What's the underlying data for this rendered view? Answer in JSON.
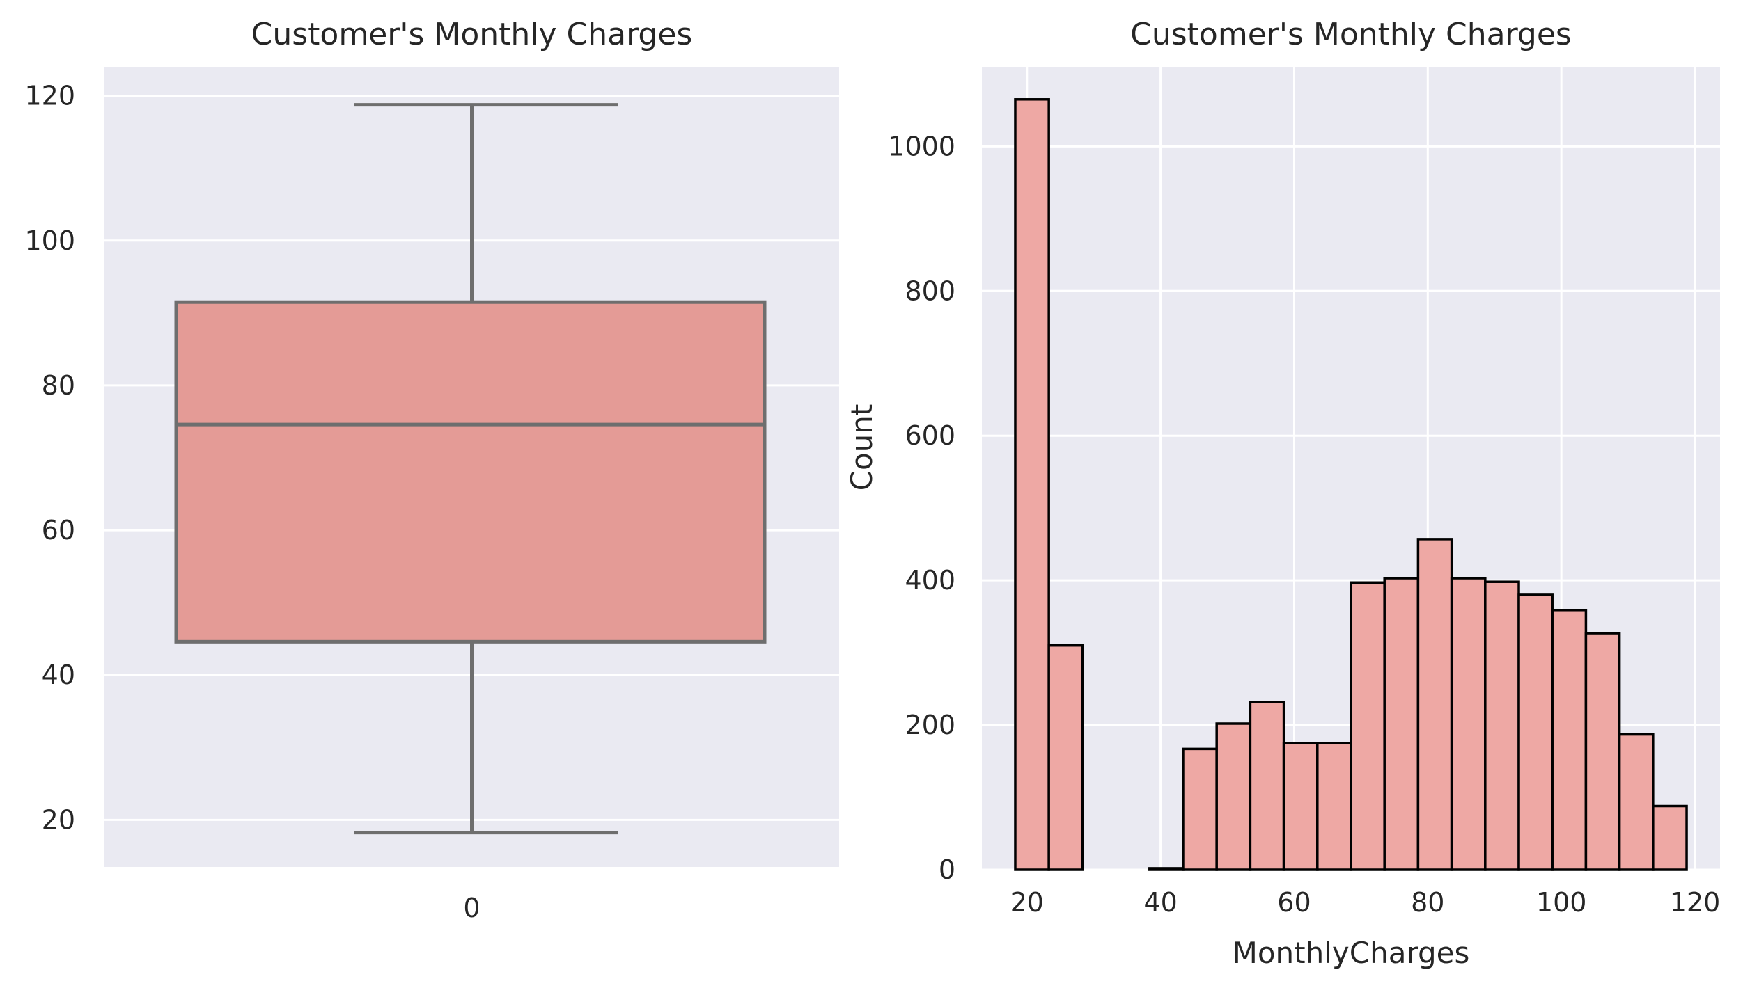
{
  "chart_data": [
    {
      "type": "box",
      "title": "Customer's Monthly Charges",
      "xlabel": "",
      "ylabel": "",
      "categories": [
        "0"
      ],
      "ylim": [
        13.5,
        124
      ],
      "yticks": [
        20,
        40,
        60,
        80,
        100,
        120
      ],
      "box": {
        "min": 18.25,
        "q1": 44.6,
        "median": 74.6,
        "q3": 91.5,
        "max": 118.75
      },
      "grid": true,
      "colors": {
        "box_fill": "#e49b96",
        "box_edge": "#6e6e6e",
        "background": "#eaeaf2",
        "grid": "#ffffff"
      }
    },
    {
      "type": "histogram",
      "title": "Customer's Monthly Charges",
      "xlabel": "MonthlyCharges",
      "ylabel": "Count",
      "xlim": [
        13.25,
        123.75
      ],
      "ylim": [
        0,
        1110
      ],
      "xticks": [
        20,
        40,
        60,
        80,
        100,
        120
      ],
      "yticks": [
        0,
        200,
        400,
        600,
        800,
        1000
      ],
      "bin_start": 18.25,
      "bin_width": 5.025,
      "counts": [
        1065,
        310,
        0,
        0,
        2,
        167,
        202,
        232,
        175,
        175,
        397,
        403,
        457,
        403,
        398,
        380,
        359,
        327,
        187,
        88
      ],
      "grid": true,
      "colors": {
        "bar_fill": "#eea8a4",
        "bar_edge": "#000000",
        "background": "#eaeaf2",
        "grid": "#ffffff"
      }
    }
  ]
}
